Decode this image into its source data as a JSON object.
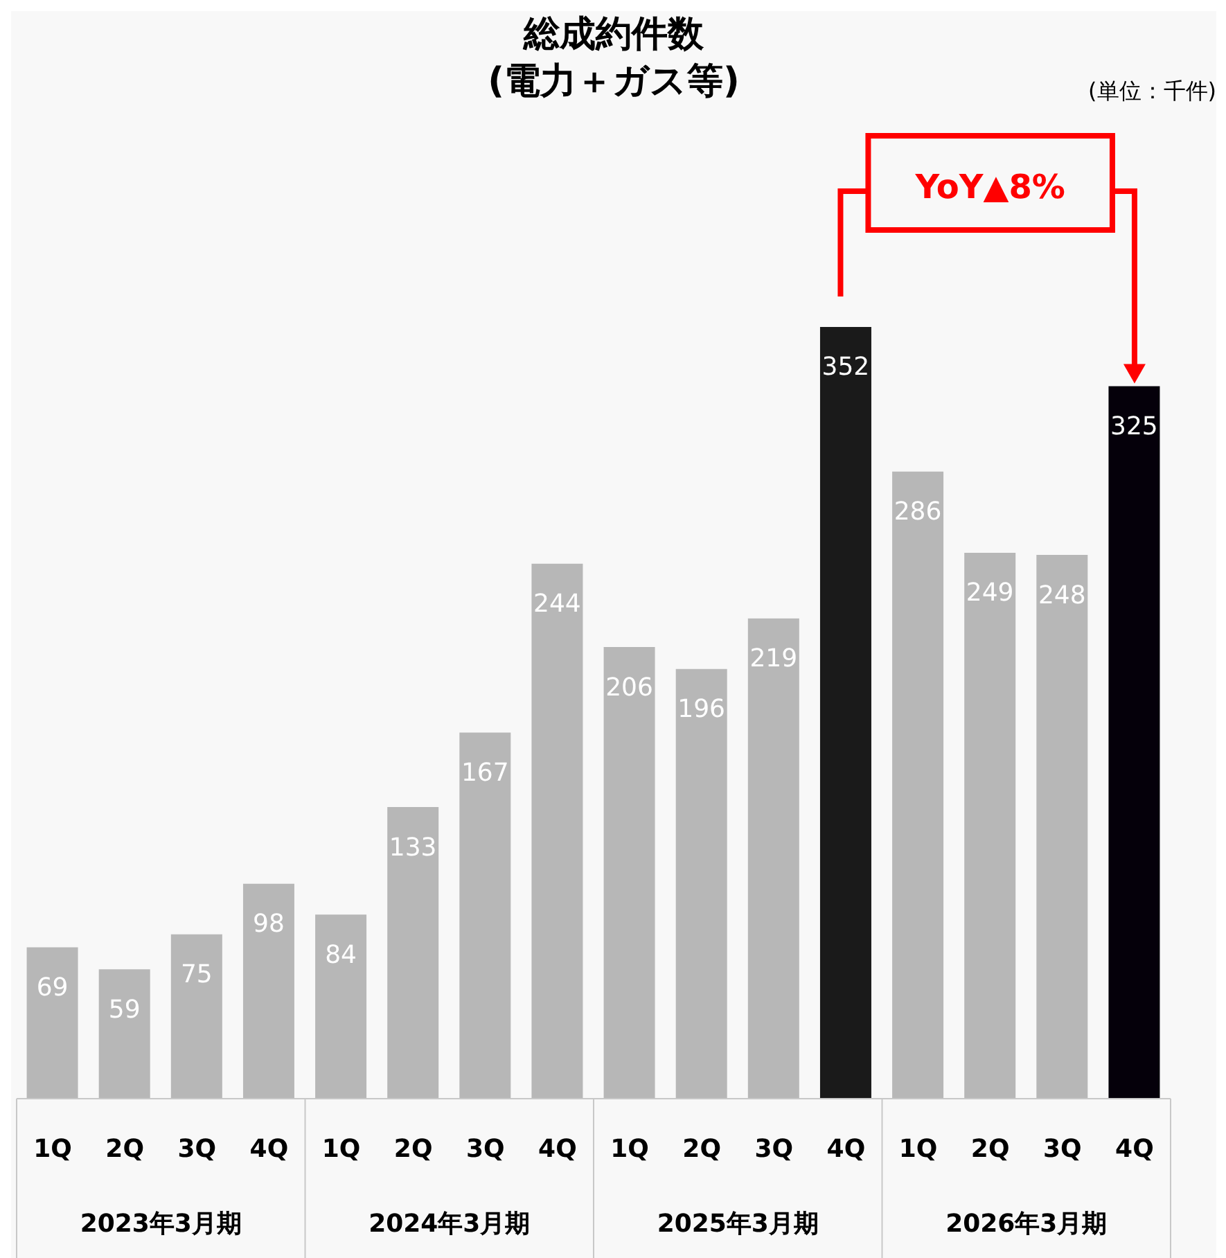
{
  "chart_data": {
    "type": "bar",
    "title": "総成約件数",
    "subtitle": "(電力＋ガス等)",
    "categories": [
      "1Q",
      "2Q",
      "3Q",
      "4Q",
      "1Q",
      "2Q",
      "3Q",
      "4Q",
      "1Q",
      "2Q",
      "3Q",
      "4Q",
      "1Q",
      "2Q",
      "3Q",
      "4Q"
    ],
    "values": [
      69,
      59,
      75,
      98,
      84,
      133,
      167,
      244,
      206,
      196,
      219,
      352,
      286,
      249,
      248,
      325
    ],
    "colors": [
      "#b7b7b7",
      "#b7b7b7",
      "#b7b7b7",
      "#b7b7b7",
      "#b7b7b7",
      "#b7b7b7",
      "#b7b7b7",
      "#b7b7b7",
      "#b7b7b7",
      "#b7b7b7",
      "#b7b7b7",
      "#1a1a1a",
      "#b7b7b7",
      "#b7b7b7",
      "#b7b7b7",
      "#05000a"
    ],
    "data_labels": true,
    "grid": false,
    "legend": false,
    "annotations": [
      "(単位：千件)",
      "YoY▲8%",
      "2023年3月期",
      "2024年3月期",
      "2025年3月期",
      "2026年3月期"
    ]
  }
}
